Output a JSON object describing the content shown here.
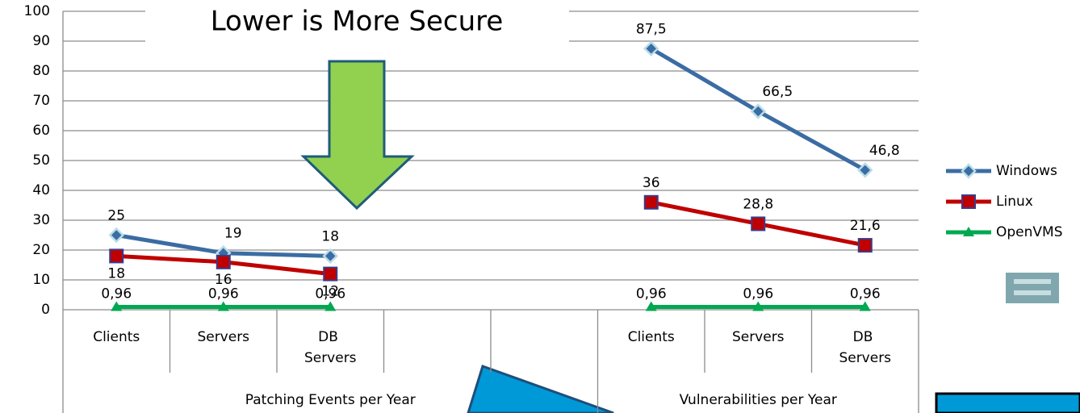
{
  "chart_data": {
    "type": "line",
    "title": "Lower is More Secure",
    "groups": [
      {
        "name": "Patching Events per Year",
        "categories": [
          "Clients",
          "Servers",
          "DB Servers",
          null,
          null
        ]
      },
      {
        "name": "Vulnerabilities per Year",
        "categories": [
          "Clients",
          "Servers",
          "DB Servers"
        ]
      }
    ],
    "series": [
      {
        "name": "Windows",
        "color": "#3b6ca3",
        "marker": "diamond",
        "values": [
          25,
          19,
          18,
          null,
          null,
          87.5,
          66.5,
          46.8
        ],
        "value_labels": [
          "25",
          "19",
          "18",
          null,
          null,
          "87,5",
          "66,5",
          "46,8"
        ]
      },
      {
        "name": "Linux",
        "color": "#c00000",
        "marker": "square",
        "values": [
          18,
          16,
          12,
          null,
          null,
          36,
          28.8,
          21.6
        ],
        "value_labels": [
          "18",
          "16",
          "12",
          null,
          null,
          "36",
          "28,8",
          "21,6"
        ]
      },
      {
        "name": "OpenVMS",
        "color": "#00a850",
        "marker": "triangle",
        "values": [
          0.96,
          0.96,
          0.96,
          null,
          null,
          0.96,
          0.96,
          0.96
        ],
        "value_labels": [
          "0,96",
          "0,96",
          "0,96",
          null,
          null,
          "0,96",
          "0,96",
          "0,96"
        ]
      }
    ],
    "ylim": [
      0,
      100
    ],
    "yticks": [
      0,
      10,
      20,
      30,
      40,
      50,
      60,
      70,
      80,
      90,
      100
    ],
    "grid": true,
    "legend": "right"
  }
}
